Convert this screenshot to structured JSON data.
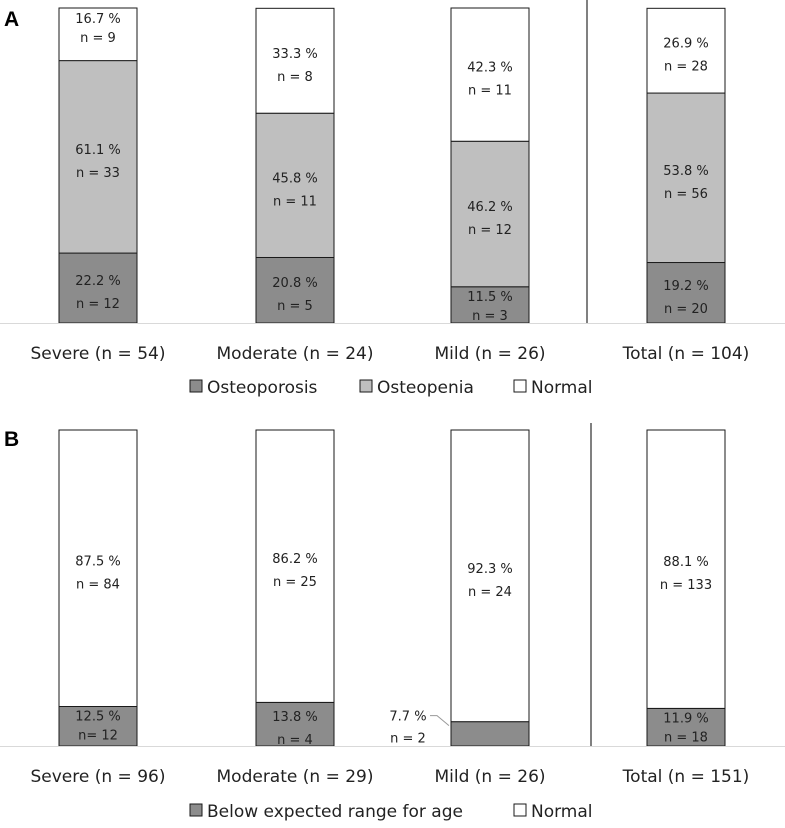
{
  "chart_data": [
    {
      "type": "bar",
      "stacked": true,
      "panel_label": "A",
      "categories": [
        "Severe (n = 54)",
        "Moderate (n = 24)",
        "Mild (n = 26)",
        "Total (n = 104)"
      ],
      "series": [
        {
          "name": "Osteoporosis",
          "color": "#8c8c8c",
          "values": [
            22.2,
            20.8,
            11.5,
            19.2
          ],
          "labels": [
            "22.2 %",
            "20.8 %",
            "11.5 %",
            "19.2 %"
          ],
          "counts": [
            "n = 12",
            "n = 5",
            "n = 3",
            "n = 20"
          ]
        },
        {
          "name": "Osteopenia",
          "color": "#bfbfbf",
          "values": [
            61.1,
            45.8,
            46.2,
            53.8
          ],
          "labels": [
            "61.1 %",
            "45.8 %",
            "46.2 %",
            "53.8 %"
          ],
          "counts": [
            "n = 33",
            "n = 11",
            "n = 12",
            "n = 56"
          ]
        },
        {
          "name": "Normal",
          "color": "#ffffff",
          "values": [
            16.7,
            33.3,
            42.3,
            26.9
          ],
          "labels": [
            "16.7 %",
            "33.3 %",
            "42.3 %",
            "26.9 %"
          ],
          "counts": [
            "n = 9",
            "n = 8",
            "n = 11",
            "n = 28"
          ]
        }
      ],
      "legend": [
        "Osteoporosis",
        "Osteopenia",
        "Normal"
      ],
      "ylim": [
        0,
        100
      ]
    },
    {
      "type": "bar",
      "stacked": true,
      "panel_label": "B",
      "categories": [
        "Severe (n = 96)",
        "Moderate (n = 29)",
        "Mild (n = 26)",
        "Total (n = 151)"
      ],
      "series": [
        {
          "name": "Below expected range for age",
          "color": "#8c8c8c",
          "values": [
            12.5,
            13.8,
            7.7,
            11.9
          ],
          "labels": [
            "12.5 %",
            "13.8 %",
            "7.7 %",
            "11.9 %"
          ],
          "counts": [
            "n= 12",
            "n = 4",
            "n = 2",
            "n = 18"
          ]
        },
        {
          "name": "Normal",
          "color": "#ffffff",
          "values": [
            87.5,
            86.2,
            92.3,
            88.1
          ],
          "labels": [
            "87.5 %",
            "86.2 %",
            "92.3 %",
            "88.1 %"
          ],
          "counts": [
            "n = 84",
            "n = 25",
            "n = 24",
            "n = 133"
          ]
        }
      ],
      "legend": [
        "Below expected range for age",
        "Normal"
      ],
      "ylim": [
        0,
        100
      ]
    }
  ]
}
